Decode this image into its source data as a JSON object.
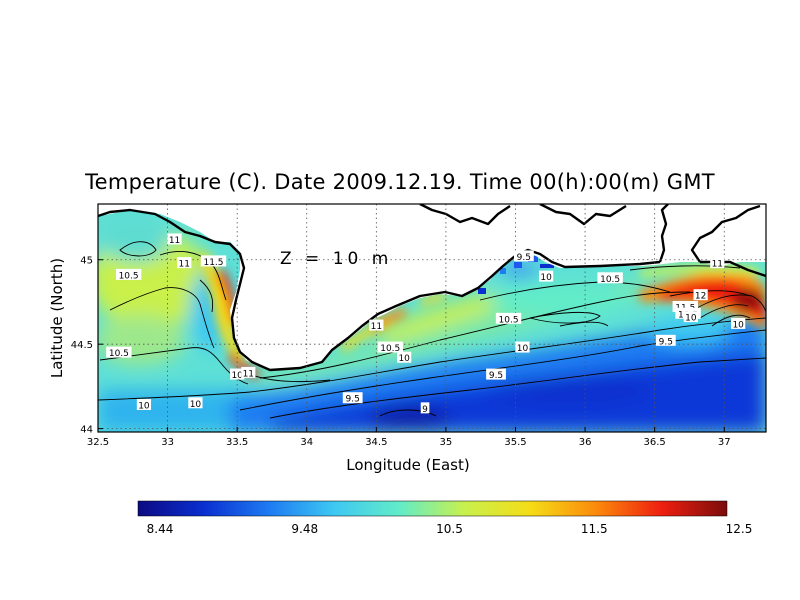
{
  "chart_data": {
    "type": "heatmap",
    "title": "Temperature (C). Date 2009.12.19. Time 00(h):00(m) GMT",
    "annotation": "Z = 10 m",
    "xlabel": "Longitude (East)",
    "ylabel": "Latitude (North)",
    "xlim": [
      32.5,
      37.3
    ],
    "ylim": [
      43.98,
      45.33
    ],
    "x_ticks": [
      "32.5",
      "33",
      "33.5",
      "34",
      "34.5",
      "35",
      "35.5",
      "36",
      "36.5",
      "37"
    ],
    "y_ticks": [
      "44",
      "44.5",
      "45"
    ],
    "grid": true,
    "colorbar": {
      "min": 8.44,
      "max": 12.5,
      "tick_labels": [
        "8.44",
        "9.48",
        "10.5",
        "11.5",
        "12.5"
      ],
      "colors": [
        "#0c0a82",
        "#0a2fd0",
        "#1e7bf2",
        "#3ec8f2",
        "#62ecc8",
        "#c9f04c",
        "#f5dc16",
        "#fb8a0c",
        "#ee1f10",
        "#7a0c0c"
      ]
    },
    "contour_levels": [
      9,
      9.5,
      10,
      10.5,
      11,
      11.5,
      12
    ],
    "contour_labels": [
      {
        "lon": 33.05,
        "lat": 45.12,
        "text": "11"
      },
      {
        "lon": 33.12,
        "lat": 44.98,
        "text": "11"
      },
      {
        "lon": 33.33,
        "lat": 44.99,
        "text": "11.5"
      },
      {
        "lon": 32.72,
        "lat": 44.91,
        "text": "10.5"
      },
      {
        "lon": 32.65,
        "lat": 44.45,
        "text": "10.5"
      },
      {
        "lon": 32.83,
        "lat": 44.14,
        "text": "10"
      },
      {
        "lon": 33.2,
        "lat": 44.15,
        "text": "10"
      },
      {
        "lon": 33.5,
        "lat": 44.32,
        "text": "10"
      },
      {
        "lon": 33.58,
        "lat": 44.33,
        "text": "11"
      },
      {
        "lon": 34.5,
        "lat": 44.61,
        "text": "11"
      },
      {
        "lon": 34.6,
        "lat": 44.48,
        "text": "10.5"
      },
      {
        "lon": 34.7,
        "lat": 44.42,
        "text": "10"
      },
      {
        "lon": 34.33,
        "lat": 44.18,
        "text": "9.5"
      },
      {
        "lon": 34.85,
        "lat": 44.12,
        "text": "9"
      },
      {
        "lon": 35.36,
        "lat": 44.32,
        "text": "9.5"
      },
      {
        "lon": 35.55,
        "lat": 44.48,
        "text": "10"
      },
      {
        "lon": 35.45,
        "lat": 44.65,
        "text": "10.5"
      },
      {
        "lon": 35.56,
        "lat": 45.02,
        "text": "9.5"
      },
      {
        "lon": 35.72,
        "lat": 44.9,
        "text": "10"
      },
      {
        "lon": 36.18,
        "lat": 44.89,
        "text": "10.5"
      },
      {
        "lon": 36.58,
        "lat": 44.52,
        "text": "9.5"
      },
      {
        "lon": 36.95,
        "lat": 44.98,
        "text": "11"
      },
      {
        "lon": 36.83,
        "lat": 44.79,
        "text": "12"
      },
      {
        "lon": 36.72,
        "lat": 44.72,
        "text": "11.5"
      },
      {
        "lon": 36.74,
        "lat": 44.68,
        "text": "10.5"
      },
      {
        "lon": 36.76,
        "lat": 44.66,
        "text": "10"
      },
      {
        "lon": 37.1,
        "lat": 44.62,
        "text": "10"
      }
    ]
  }
}
